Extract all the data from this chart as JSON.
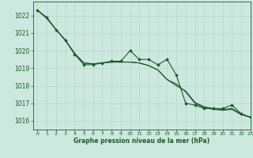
{
  "title": "Graphe pression niveau de la mer (hPa)",
  "background_color": "#cde8df",
  "line_color": "#1a5c2a",
  "grid_color": "#b8d8cc",
  "xlim": [
    -0.5,
    23
  ],
  "ylim": [
    1015.5,
    1022.8
  ],
  "yticks": [
    1016,
    1017,
    1018,
    1019,
    1020,
    1021,
    1022
  ],
  "xticks": [
    0,
    1,
    2,
    3,
    4,
    5,
    6,
    7,
    8,
    9,
    10,
    11,
    12,
    13,
    14,
    15,
    16,
    17,
    18,
    19,
    20,
    21,
    22,
    23
  ],
  "series_jagged": [
    1022.3,
    1021.9,
    1021.2,
    1020.6,
    1019.8,
    1019.2,
    1019.2,
    1019.3,
    1019.4,
    1019.4,
    1020.0,
    1019.5,
    1019.5,
    1019.2,
    1019.5,
    1018.6,
    1017.0,
    1016.9,
    1016.7,
    1016.7,
    1016.7,
    1016.9,
    1016.4,
    1016.2
  ],
  "series_smooth1": [
    1022.3,
    1021.85,
    1021.2,
    1020.6,
    1019.85,
    1019.3,
    1019.25,
    1019.3,
    1019.35,
    1019.35,
    1019.35,
    1019.3,
    1019.15,
    1018.9,
    1018.35,
    1018.1,
    1017.65,
    1017.0,
    1016.75,
    1016.65,
    1016.6,
    1016.65,
    1016.35,
    1016.2
  ],
  "series_smooth2": [
    1022.3,
    1021.85,
    1021.2,
    1020.6,
    1019.85,
    1019.3,
    1019.25,
    1019.3,
    1019.35,
    1019.35,
    1019.35,
    1019.3,
    1019.15,
    1018.9,
    1018.35,
    1018.0,
    1017.7,
    1017.05,
    1016.8,
    1016.7,
    1016.65,
    1016.7,
    1016.4,
    1016.2
  ]
}
